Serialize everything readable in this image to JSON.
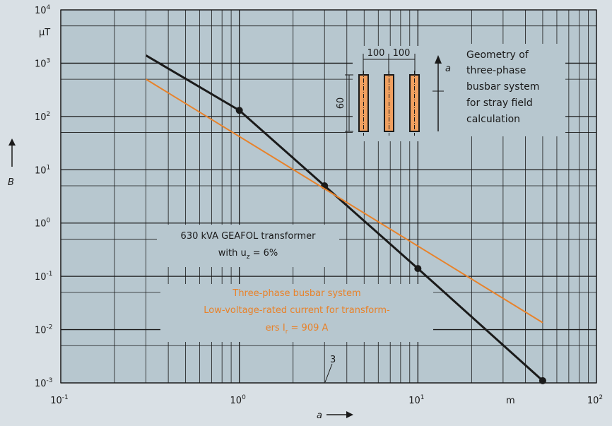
{
  "chart_data": {
    "type": "line",
    "x_scale": "log",
    "y_scale": "log",
    "xlim": [
      0.1,
      100
    ],
    "ylim": [
      0.001,
      10000
    ],
    "grid": true,
    "x_ticks": [
      {
        "base": "10",
        "exp": "-1"
      },
      {
        "base": "10",
        "exp": "0"
      },
      {
        "base": "10",
        "exp": "1"
      },
      {
        "base": "10",
        "exp": "2"
      }
    ],
    "y_ticks": [
      {
        "base": "10",
        "exp": "-3"
      },
      {
        "base": "10",
        "exp": "-2"
      },
      {
        "base": "10",
        "exp": "-1"
      },
      {
        "base": "10",
        "exp": "0"
      },
      {
        "base": "10",
        "exp": "1"
      },
      {
        "base": "10",
        "exp": "2"
      },
      {
        "base": "10",
        "exp": "3"
      },
      {
        "base": "10",
        "exp": "4"
      }
    ],
    "x_unit": "m",
    "y_unit": "μT",
    "xlabel": "a",
    "ylabel": "B",
    "series": [
      {
        "color": "#1a1a1a",
        "x": [
          0.3,
          1,
          3,
          10,
          50
        ],
        "y": [
          1400,
          130,
          5,
          0.14,
          0.0011
        ],
        "markers": [
          1,
          3,
          10,
          50
        ]
      },
      {
        "color": "#e8822a",
        "x": [
          0.3,
          50
        ],
        "y": [
          500,
          0.0135
        ]
      }
    ],
    "tick_3_label": "3",
    "annotations": {
      "transformer_line1": "630 kVA GEAFOL transformer",
      "transformer_line2_prefix": "with u",
      "transformer_line2_sub": "z",
      "transformer_line2_suffix": " = 6%",
      "busbar_line1": "Three-phase busbar system",
      "busbar_line2": "Low-voltage-rated current for transform-",
      "busbar_line3_prefix": "ers I",
      "busbar_line3_sub": "r",
      "busbar_line3_suffix": " = 909 A"
    },
    "inset": {
      "dim_spacing_1": "100",
      "dim_spacing_2": "100",
      "dim_height": "60",
      "axis_label": "a",
      "caption": [
        "Geometry of",
        "three-phase",
        "busbar system",
        "for stray field",
        "calculation"
      ]
    }
  },
  "colors": {
    "background": "#d9e0e5",
    "plot_bg": "#b7c7cf",
    "grid": "#1a1a1a",
    "busbar_fill": "#f0a060",
    "orange": "#e8822a"
  }
}
